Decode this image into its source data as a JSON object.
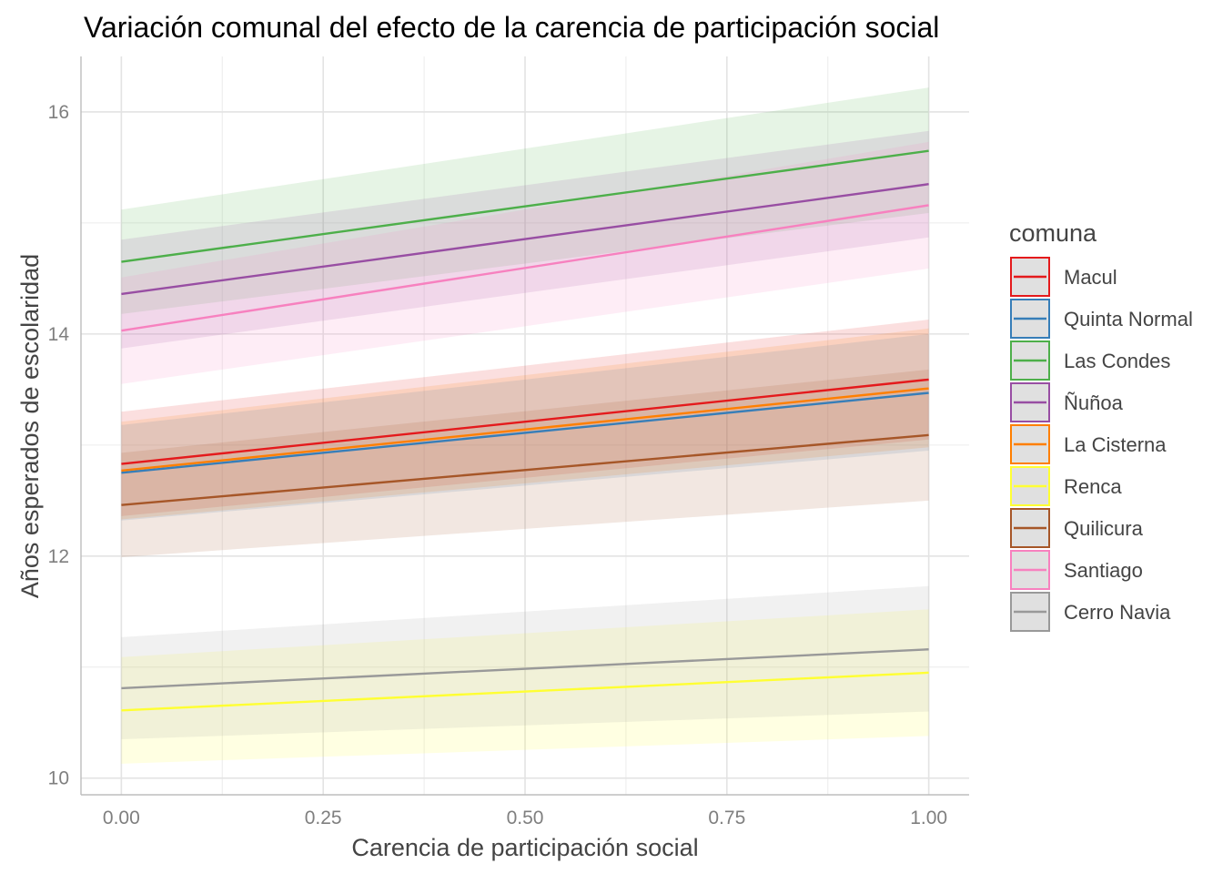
{
  "chart_data": {
    "type": "line",
    "title": "Variación comunal del efecto de la carencia de participación social",
    "xlabel": "Carencia de participación social",
    "ylabel": "Años esperados de escolaridad",
    "xlim": [
      -0.05,
      1.05
    ],
    "ylim": [
      9.85,
      16.5
    ],
    "x_ticks": [
      0.0,
      0.25,
      0.5,
      0.75,
      1.0
    ],
    "x_tick_labels": [
      "0.00",
      "0.25",
      "0.50",
      "0.75",
      "1.00"
    ],
    "y_ticks": [
      10,
      12,
      14,
      16
    ],
    "y_tick_labels": [
      "10",
      "12",
      "14",
      "16"
    ],
    "grid": true,
    "legend": {
      "title": "comuna",
      "position": "right"
    },
    "x": [
      0,
      1
    ],
    "series": [
      {
        "name": "Macul",
        "color": "#e41a1c",
        "values": [
          12.83,
          13.59
        ],
        "lower": [
          12.36,
          13.05
        ],
        "upper": [
          13.3,
          14.13
        ]
      },
      {
        "name": "Quinta Normal",
        "color": "#377eb8",
        "values": [
          12.75,
          13.47
        ],
        "lower": [
          12.32,
          12.95
        ],
        "upper": [
          13.18,
          14.0
        ]
      },
      {
        "name": "Las Condes",
        "color": "#4daf4a",
        "values": [
          14.65,
          15.65
        ],
        "lower": [
          14.18,
          15.09
        ],
        "upper": [
          15.12,
          16.22
        ]
      },
      {
        "name": "Ñuñoa",
        "color": "#984ea3",
        "values": [
          14.36,
          15.35
        ],
        "lower": [
          13.87,
          14.87
        ],
        "upper": [
          14.85,
          15.83
        ]
      },
      {
        "name": "La Cisterna",
        "color": "#ff7f00",
        "values": [
          12.77,
          13.51
        ],
        "lower": [
          12.33,
          12.98
        ],
        "upper": [
          13.21,
          14.05
        ]
      },
      {
        "name": "Renca",
        "color": "#ffff33",
        "values": [
          10.61,
          10.95
        ],
        "lower": [
          10.13,
          10.38
        ],
        "upper": [
          11.09,
          11.52
        ]
      },
      {
        "name": "Quilicura",
        "color": "#a65628",
        "values": [
          12.46,
          13.09
        ],
        "lower": [
          11.99,
          12.5
        ],
        "upper": [
          12.93,
          13.68
        ]
      },
      {
        "name": "Santiago",
        "color": "#f781bf",
        "values": [
          14.03,
          15.16
        ],
        "lower": [
          13.55,
          14.59
        ],
        "upper": [
          14.51,
          15.73
        ]
      },
      {
        "name": "Cerro Navia",
        "color": "#999999",
        "values": [
          10.81,
          11.16
        ],
        "lower": [
          10.35,
          10.6
        ],
        "upper": [
          11.27,
          11.73
        ]
      }
    ]
  }
}
